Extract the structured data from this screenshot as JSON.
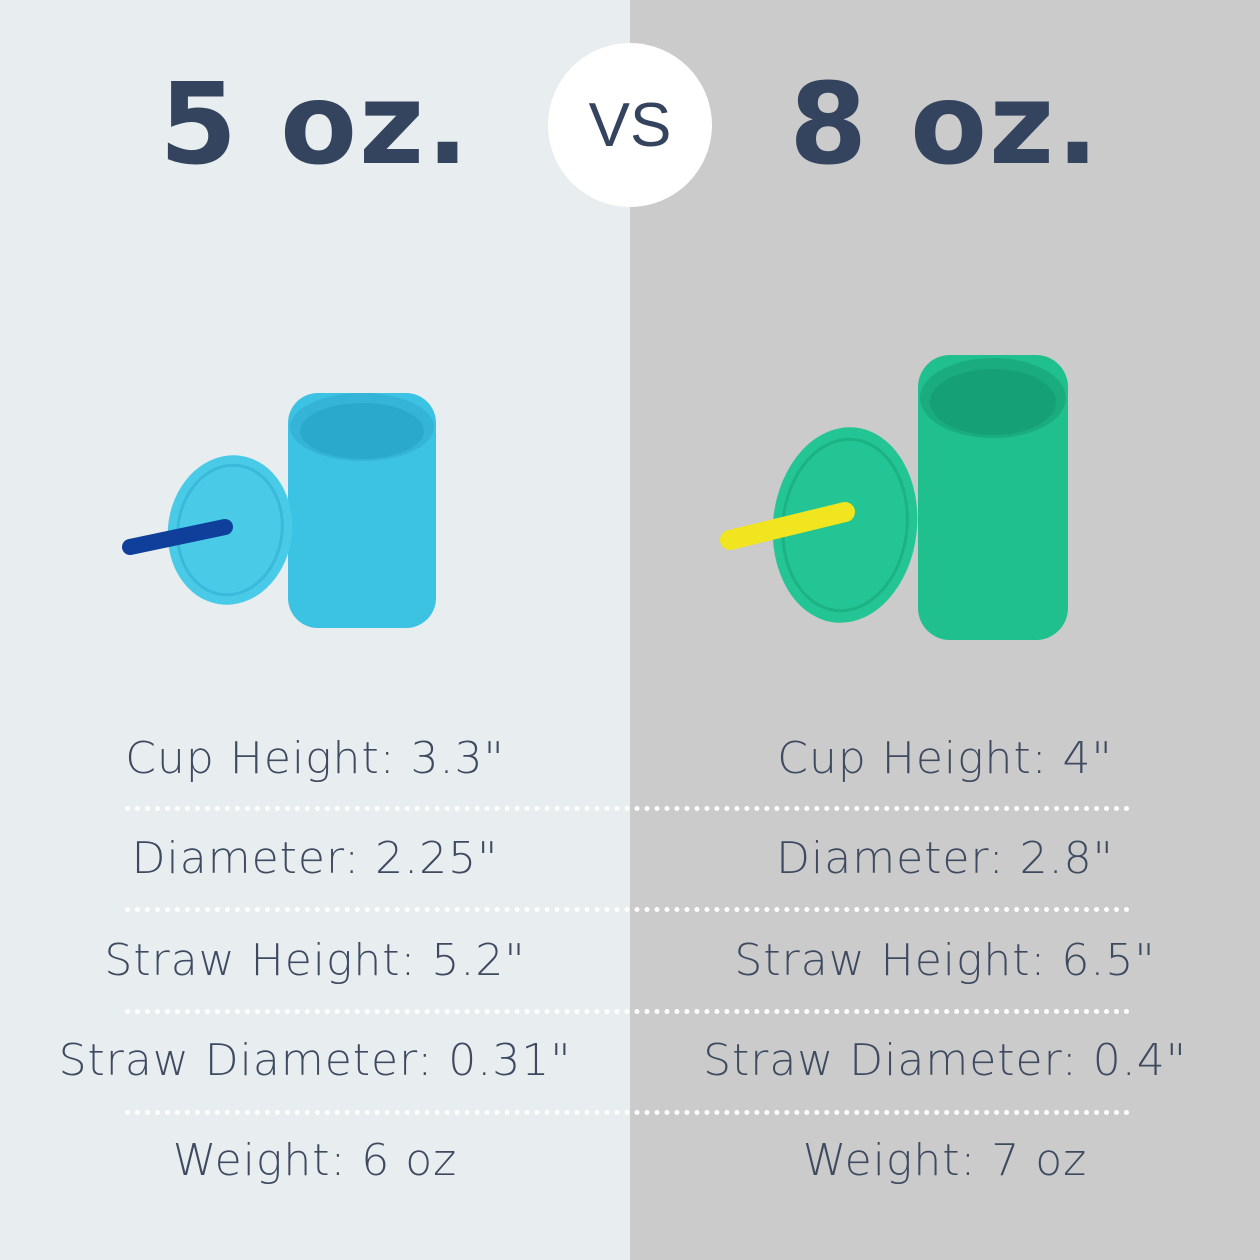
{
  "left": {
    "title": "5 oz.",
    "colors": {
      "cup": "#3cc3e3",
      "lid": "#49cbe8",
      "straw": "#0e3f9a",
      "background": "#e8edf0"
    },
    "specs": [
      "Cup Height: 3.3\"",
      "Diameter: 2.25\"",
      "Straw Height: 5.2\"",
      "Straw Diameter: 0.31\"",
      "Weight: 6 oz"
    ]
  },
  "vs_label": "VS",
  "right": {
    "title": "8 oz.",
    "colors": {
      "cup": "#1fc08e",
      "lid": "#24c594",
      "straw": "#f0e51e",
      "background": "#cbcbcb"
    },
    "specs": [
      "Cup Height: 4\"",
      "Diameter: 2.8\"",
      "Straw Height: 6.5\"",
      "Straw Diameter: 0.4\"",
      "Weight: 7 oz"
    ]
  },
  "text_color": "#34445e"
}
